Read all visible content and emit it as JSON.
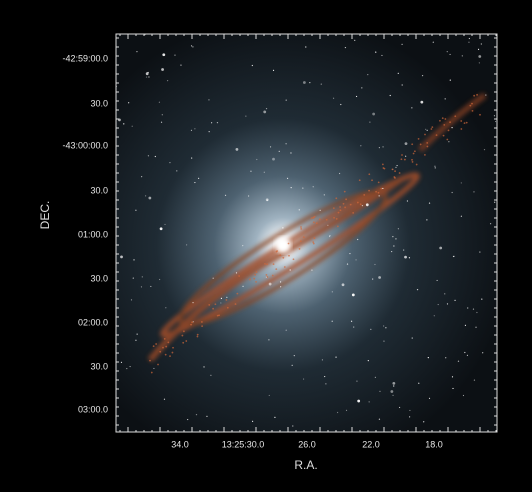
{
  "axes": {
    "y_title": "DEC.",
    "x_title": "R.A.",
    "y_ticks": [
      "-42:59:00.0",
      "30.0",
      "-43:00:00.0",
      "30.0",
      "01:00.0",
      "30.0",
      "02:00.0",
      "30.0",
      "03:00.0"
    ],
    "x_ticks": [
      "34.0",
      "13:25:30.0",
      "26.0",
      "22.0",
      "18.0"
    ]
  }
}
